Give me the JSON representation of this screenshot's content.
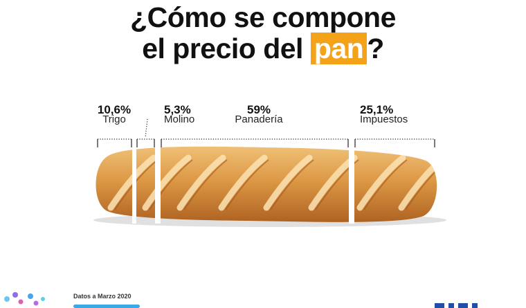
{
  "title": {
    "line1": "¿Cómo se compone",
    "line2_prefix": "el precio del ",
    "line2_highlight": "pan",
    "line2_suffix": "?"
  },
  "chart_data": {
    "type": "bar",
    "title": "¿Cómo se compone el precio del pan?",
    "categories": [
      "Trigo",
      "Molino",
      "Panadería",
      "Impuestos"
    ],
    "values": [
      10.6,
      5.3,
      59,
      25.1
    ],
    "value_labels": [
      "10,6%",
      "5,3%",
      "59%",
      "25,1%"
    ],
    "unit": "%"
  },
  "footer": {
    "date_note": "Datos a Marzo 2020"
  },
  "colors": {
    "highlight": "#f5a21b",
    "text": "#111111",
    "crust_light": "#e9b164",
    "crust_dark": "#b86a22",
    "footer_accent": "#3aa9e6"
  }
}
